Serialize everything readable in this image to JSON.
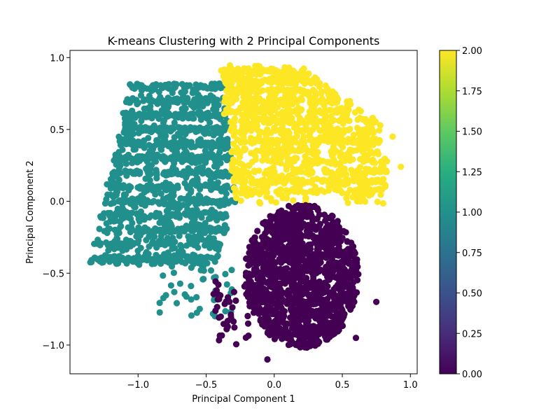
{
  "chart_data": {
    "type": "scatter",
    "title": "K-means Clustering with 2 Principal Components",
    "xlabel": "Principal Component 1",
    "ylabel": "Principal Component 2",
    "xlim": [
      -1.5,
      1.05
    ],
    "ylim": [
      -1.2,
      1.05
    ],
    "xticks": [
      -1.0,
      -0.5,
      0.0,
      0.5,
      1.0
    ],
    "xtick_labels": [
      "−1.0",
      "−0.5",
      "0.0",
      "0.5",
      "1.0"
    ],
    "yticks": [
      -1.0,
      -0.5,
      0.0,
      0.5,
      1.0
    ],
    "ytick_labels": [
      "−1.0",
      "−0.5",
      "0.0",
      "0.5",
      "1.0"
    ],
    "grid": false,
    "colormap": "viridis",
    "colorbar": {
      "min": 0.0,
      "max": 2.0,
      "ticks": [
        0.0,
        0.25,
        0.5,
        0.75,
        1.0,
        1.25,
        1.5,
        1.75,
        2.0
      ],
      "tick_labels": [
        "0.00",
        "0.25",
        "0.50",
        "0.75",
        "1.00",
        "1.25",
        "1.50",
        "1.75",
        "2.00"
      ]
    },
    "clusters": [
      {
        "label": 0,
        "color": "#440154",
        "region": {
          "cx": 0.2,
          "cy": -0.52,
          "rx": 0.42,
          "ry": 0.5
        },
        "count": 1400
      },
      {
        "label": 1,
        "color": "#21908d",
        "region": {
          "x_left_top": -1.0,
          "x_left_bottom": -1.38,
          "y_top": 0.82,
          "y_bottom": -0.45
        },
        "count": 1500
      },
      {
        "label": 2,
        "color": "#fde725",
        "region": {
          "x_min": -0.35,
          "x_max": 0.95,
          "y_min": 0.0,
          "y_max": 0.95
        },
        "count": 1300
      }
    ]
  }
}
